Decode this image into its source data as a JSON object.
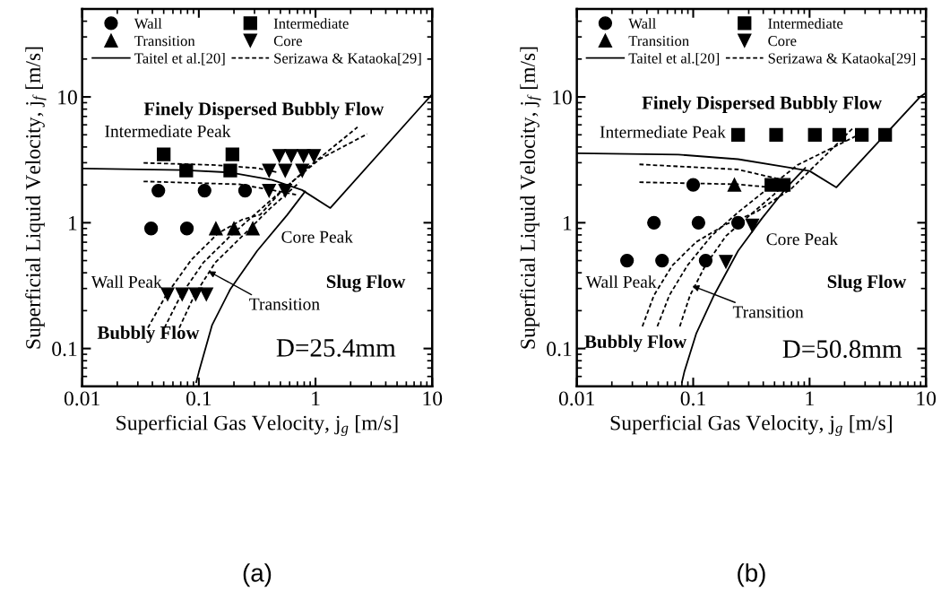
{
  "chart_data": [
    {
      "type": "scatter",
      "xlabel": "Superficial Gas Velocity, j$_{g}$ [m/s]",
      "ylabel": "Superficial Liquid Velocity, j$_{f}$ [m/s]",
      "log": "xy",
      "xlim": [
        0.01,
        10
      ],
      "ylim": [
        0.05,
        50
      ],
      "xticks": [
        0.01,
        0.1,
        1,
        10
      ],
      "yticks": [
        0.1,
        1,
        10
      ],
      "legend": "top",
      "annotations": [
        "Finely Dispersed Bubbly Flow",
        "Intermediate Peak",
        "Core Peak",
        "Wall Peak",
        "Slug Flow",
        {
          "text": "Transition",
          "x": 0.116,
          "y": 0.42
        },
        "Bubbly Flow",
        "D=25.4mm",
        "(a)"
      ],
      "series": [
        {
          "name": "Wall",
          "marker": "circle",
          "color": "#000000",
          "x": [
            0.045,
            0.112,
            0.249,
            0.039,
            0.079
          ],
          "values": [
            1.8,
            1.8,
            1.8,
            0.9,
            0.9
          ]
        },
        {
          "name": "Transition",
          "marker": "triangle",
          "color": "#000000",
          "x": [
            0.14,
            0.2,
            0.29
          ],
          "values": [
            0.9,
            0.9,
            0.9
          ]
        },
        {
          "name": "Taitel et al.[20]",
          "type": "line",
          "line_style": "solid",
          "color": "#000000",
          "x": [
            0.01,
            0.0723,
            0.186,
            0.425,
            0.767,
            1.34,
            8.13,
            10
          ],
          "values": [
            2.7,
            2.62,
            2.51,
            2.19,
            1.82,
            1.31,
            8.5,
            10.5
          ]
        },
        {
          "name": "Intermediate",
          "marker": "square",
          "color": "#000000",
          "x": [
            0.05,
            0.194,
            0.078,
            0.186
          ],
          "values": [
            3.5,
            3.5,
            2.6,
            2.6
          ]
        },
        {
          "name": "Core",
          "marker": "triangle_down",
          "color": "#000000",
          "x": [
            0.49,
            0.62,
            0.79,
            0.97,
            0.4,
            0.55,
            0.77,
            0.4,
            0.55,
            0.054,
            0.072,
            0.094,
            0.116
          ],
          "values": [
            3.4,
            3.4,
            3.4,
            3.4,
            2.6,
            2.6,
            2.6,
            1.8,
            1.8,
            0.27,
            0.27,
            0.27,
            0.27
          ]
        },
        {
          "name": "Serizawa & Kataoka[29]",
          "type": "line",
          "line_style": "dashed",
          "color": "#000000",
          "x": [
            0.0366,
            0.0523,
            0.0863,
            0.147,
            0.236,
            0.336,
            0.507,
            0.916,
            2.29
          ],
          "values": [
            0.146,
            0.265,
            0.508,
            0.828,
            1.06,
            1.16,
            1.77,
            2.88,
            5.75
          ]
        },
        {
          "type": "line",
          "line_style": "solid",
          "color": "#000000",
          "x": [
            0.095,
            0.1,
            0.13,
            0.186,
            0.316,
            0.57,
            0.813
          ],
          "values": [
            0.054,
            0.065,
            0.154,
            0.296,
            0.597,
            1.15,
            1.77
          ]
        },
        {
          "type": "line",
          "line_style": "dashed",
          "color": "#000000",
          "x": [
            0.0507,
            0.0701,
            0.109,
            0.186,
            0.316,
            0.538,
            1.09,
            2.78
          ],
          "values": [
            0.146,
            0.265,
            0.481,
            0.784,
            1.21,
            1.87,
            3.21,
            5.08
          ]
        },
        {
          "type": "line",
          "line_style": "dashed",
          "color": "#000000",
          "x": [
            0.068,
            0.0916,
            0.138,
            0.236,
            0.401,
            0.723
          ],
          "values": [
            0.146,
            0.265,
            0.481,
            0.784,
            1.28,
            2.08
          ]
        },
        {
          "type": "line",
          "line_style": "dashed",
          "color": "#000000",
          "x": [
            0.0336,
            0.13,
            0.316,
            0.478
          ],
          "values": [
            2.99,
            2.88,
            2.72,
            2.51
          ]
        },
        {
          "type": "line",
          "line_style": "dashed",
          "color": "#000000",
          "x": [
            0.0336,
            0.222,
            0.425,
            0.681
          ],
          "values": [
            2.13,
            2.02,
            1.82,
            1.67
          ]
        }
      ]
    },
    {
      "type": "scatter",
      "xlabel": "Superficial Gas Velocity, j$_{g}$ [m/s]",
      "ylabel": "Superficial Liquid Velocity, j$_{f}$ [m/s]",
      "log": "xy",
      "xlim": [
        0.01,
        10
      ],
      "ylim": [
        0.05,
        50
      ],
      "xticks": [
        0.01,
        0.1,
        1,
        10
      ],
      "yticks": [
        0.1,
        1,
        10
      ],
      "legend": "top",
      "annotations": [
        "Finely Dispersed Bubbly Flow",
        "Intermediate Peak",
        "Core Peak",
        "Wall Peak",
        "Slug Flow",
        {
          "text": "Transition",
          "x": 0.094,
          "y": 0.32
        },
        "Bubbly Flow",
        "D=50.8mm",
        "(b)"
      ],
      "series": [
        {
          "name": "Wall",
          "marker": "circle",
          "color": "#000000",
          "x": [
            0.1,
            0.046,
            0.111,
            0.243,
            0.027,
            0.054,
            0.128
          ],
          "values": [
            2.0,
            1.0,
            1.0,
            1.0,
            0.5,
            0.5,
            0.5
          ]
        },
        {
          "name": "Transition",
          "marker": "triangle",
          "color": "#000000",
          "x": [
            0.226
          ],
          "values": [
            2.0
          ]
        },
        {
          "name": "Taitel et al.[20]",
          "type": "line",
          "line_style": "solid",
          "color": "#000000",
          "x": [
            0.01,
            0.0745,
            0.243,
            0.587,
            1.0,
            1.7,
            8.9,
            10
          ],
          "values": [
            3.57,
            3.48,
            3.2,
            2.8,
            2.58,
            1.91,
            10,
            10.8
          ]
        },
        {
          "name": "Intermediate",
          "marker": "square",
          "color": "#000000",
          "x": [
            0.243,
            0.516,
            1.11,
            1.8,
            2.81,
            4.46,
            0.47,
            0.6
          ],
          "values": [
            5.0,
            5.0,
            5.0,
            5.0,
            5.0,
            5.0,
            2.0,
            2.0
          ]
        },
        {
          "name": "Core",
          "marker": "triangle_down",
          "color": "#000000",
          "x": [
            0.322,
            0.191
          ],
          "values": [
            0.95,
            0.49
          ]
        },
        {
          "name": "Serizawa & Kataoka[29]",
          "type": "line",
          "line_style": "dashed",
          "color": "#000000",
          "x": [
            0.0366,
            0.046,
            0.066,
            0.106,
            0.191,
            0.345,
            0.7,
            1.43,
            2.36
          ],
          "values": [
            0.15,
            0.265,
            0.456,
            0.703,
            0.97,
            1.21,
            1.87,
            3.57,
            5.66
          ]
        },
        {
          "type": "line",
          "line_style": "solid",
          "color": "#000000",
          "x": [
            0.08,
            0.0838,
            0.106,
            0.151,
            0.243,
            0.389,
            0.624,
            0.917
          ],
          "values": [
            0.054,
            0.065,
            0.131,
            0.265,
            0.597,
            1.08,
            1.87,
            2.72
          ]
        },
        {
          "type": "line",
          "line_style": "dashed",
          "color": "#000000",
          "x": [
            0.0492,
            0.0624,
            0.089,
            0.143,
            0.243,
            0.438,
            0.789,
            2.57
          ],
          "values": [
            0.15,
            0.265,
            0.456,
            0.784,
            1.21,
            1.87,
            2.88,
            4.94
          ]
        },
        {
          "type": "line",
          "line_style": "dashed",
          "color": "#000000",
          "x": [
            0.0767,
            0.094,
            0.127,
            0.191,
            0.307,
            0.492,
            0.662
          ],
          "values": [
            0.15,
            0.265,
            0.456,
            0.784,
            1.15,
            1.67,
            2.19
          ]
        },
        {
          "type": "line",
          "line_style": "dashed",
          "color": "#000000",
          "x": [
            0.0345,
            0.243,
            0.587
          ],
          "values": [
            2.91,
            2.65,
            2.19
          ]
        },
        {
          "type": "line",
          "line_style": "dashed",
          "color": "#000000",
          "x": [
            0.0345,
            0.243,
            0.587
          ],
          "values": [
            2.1,
            2.02,
            1.87
          ]
        }
      ]
    }
  ]
}
